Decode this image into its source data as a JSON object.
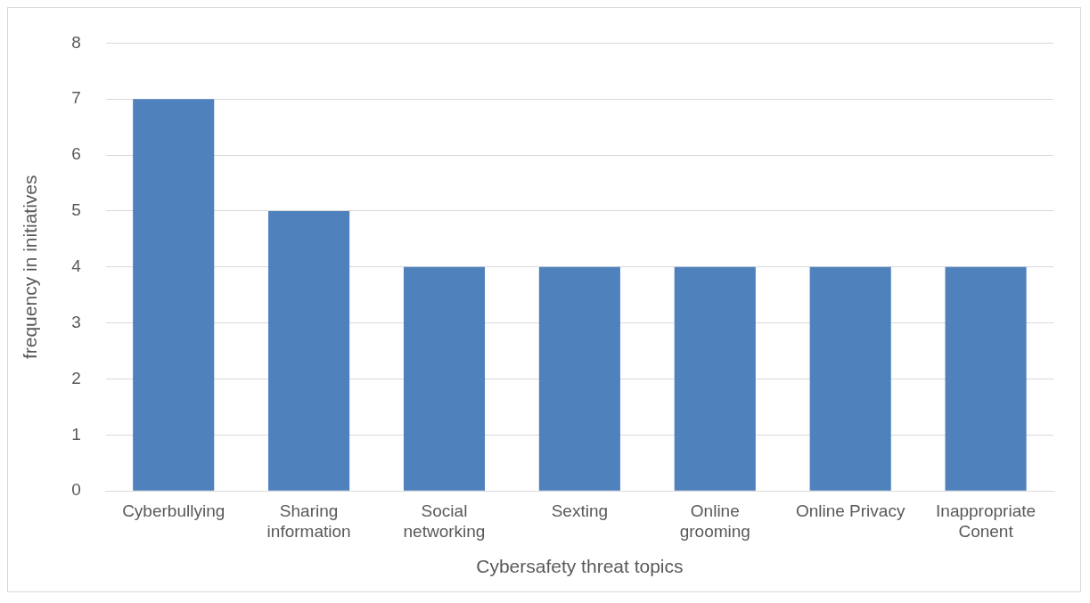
{
  "chart_data": {
    "type": "bar",
    "xlabel": "Cybersafety threat topics",
    "ylabel": "frequency in initiatives",
    "categories": [
      "Cyberbullying",
      "Sharing information",
      "Social networking",
      "Sexting",
      "Online grooming",
      "Online Privacy",
      "Inappropriate Conent"
    ],
    "values": [
      7,
      5,
      4,
      4,
      4,
      4,
      4
    ],
    "color": "#4f81bd",
    "ylim": [
      0,
      8
    ],
    "yticks": [
      0,
      1,
      2,
      3,
      4,
      5,
      6,
      7,
      8
    ],
    "grid": "y",
    "legend": false
  }
}
